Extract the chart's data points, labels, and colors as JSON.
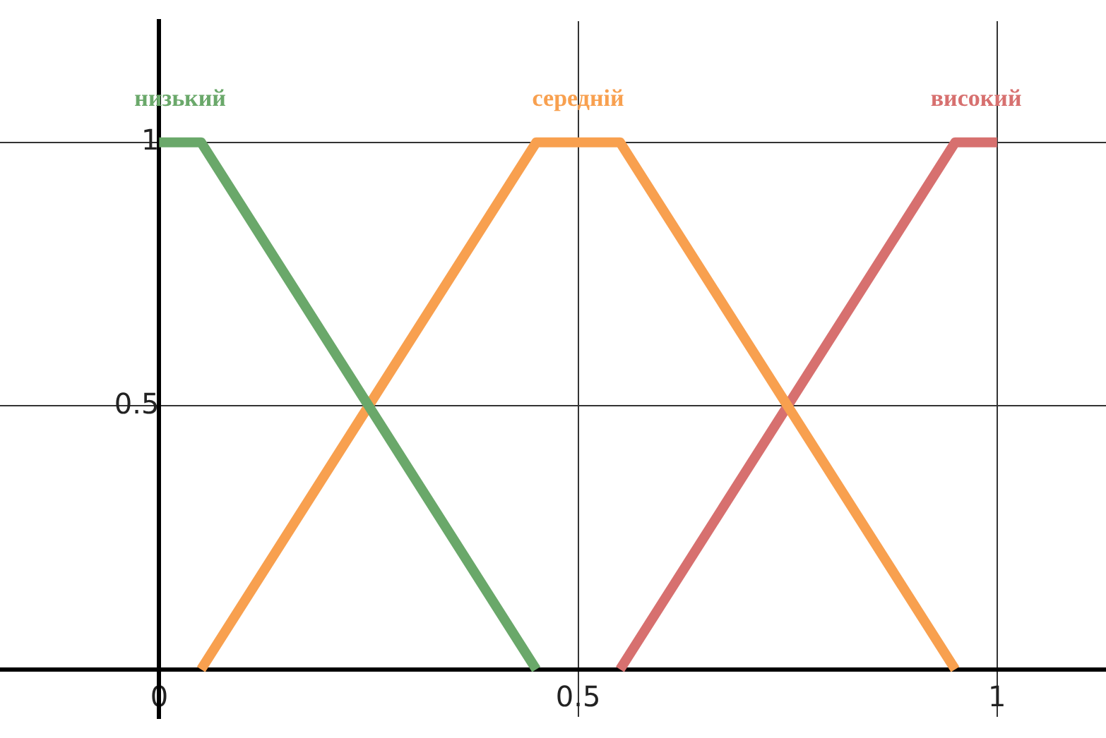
{
  "chart_data": {
    "type": "line",
    "xlim": [
      -0.19,
      1.13
    ],
    "ylim": [
      -0.09,
      1.23
    ],
    "xticks": [
      0,
      0.5,
      1
    ],
    "yticks": [
      {
        "value": 0,
        "label": null
      },
      0.5,
      1
    ],
    "grid": true,
    "legend": false,
    "marker": "none",
    "line_style": "solid",
    "series": [
      {
        "name": "низький",
        "color": "#6aa86a",
        "x": [
          0,
          0.05,
          0.45
        ],
        "values": [
          1,
          1,
          0
        ]
      },
      {
        "name": "середній",
        "color": "#f8a04f",
        "x": [
          0.05,
          0.45,
          0.55,
          0.95
        ],
        "values": [
          0,
          1,
          1,
          0
        ]
      },
      {
        "name": "високий",
        "color": "#d7706f",
        "x": [
          0.55,
          0.95,
          1
        ],
        "values": [
          0,
          1,
          1
        ]
      }
    ]
  }
}
